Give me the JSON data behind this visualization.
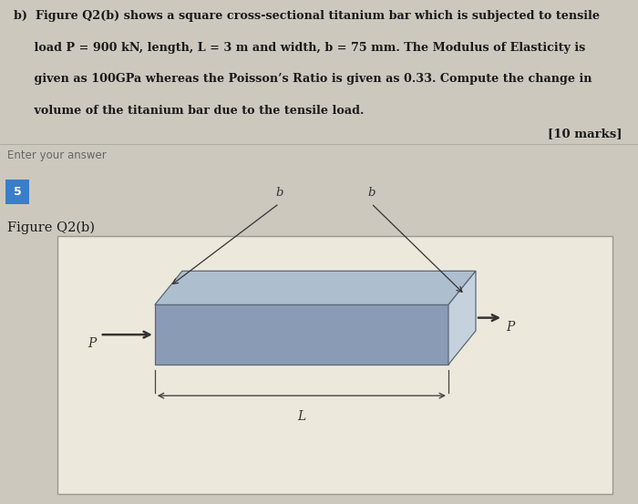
{
  "bg_color_main": "#ccc8be",
  "bg_color_white": "#ffffff",
  "bg_color_answer": "#e8e4dc",
  "bg_color_figure_section": "#c8c4bc",
  "bg_color_figure_box": "#ede8dc",
  "bg_color_lower_band": "#c0bdb5",
  "text_color": "#1a1a1a",
  "page_num_bg": "#3a7dc9",
  "line1": "b)  Figure Q2(b) shows a square cross-sectional titanium bar which is subjected to tensile",
  "line2": "     load P = 900 kN, length, L = 3 m and width, b = 75 mm. The Modulus of Elasticity is",
  "line3": "     given as 100GPa whereas the Poisson’s Ratio is given as 0.33. Compute the change in",
  "line4": "     volume of the titanium bar due to the tensile load.",
  "underline_words": [
    "kN",
    "m"
  ],
  "marks_text": "[10 marks]",
  "enter_answer_text": "Enter your answer",
  "page_num_text": "5",
  "figure_label": "Figure Q2(b)",
  "bar_color_front": "#8a9bb5",
  "bar_color_top": "#adbece",
  "bar_color_right": "#c5d2de",
  "bar_edge_color": "#6070848",
  "arrow_color": "#333333",
  "dim_color": "#444444",
  "label_P": "P",
  "label_L": "L",
  "label_b": "b",
  "font_size_text": 9.2,
  "font_size_marks": 9.5,
  "font_size_enter": 8.5,
  "font_size_label": 10.5,
  "font_size_P": 10,
  "font_size_b": 9.5,
  "font_size_L": 10,
  "font_size_page": 9
}
